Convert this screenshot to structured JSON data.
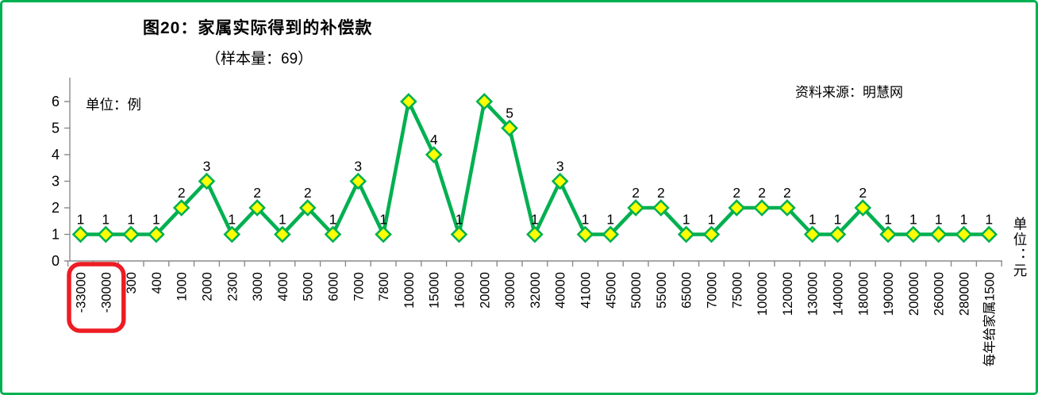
{
  "frame": {
    "border_color": "#00B050",
    "background": "#ffffff"
  },
  "header": {
    "title": "图20：家属实际得到的补偿款",
    "subtitle": "（样本量：69）",
    "source": "资料来源：明慧网"
  },
  "chart_data": {
    "type": "line",
    "title": "图20：家属实际得到的补偿款",
    "subtitle": "（样本量：69）",
    "source": "资料来源：明慧网",
    "ylabel": "单位：例",
    "xlabel": "单位：元",
    "ylim": [
      0,
      6
    ],
    "yticks": [
      0,
      1,
      2,
      3,
      4,
      5,
      6
    ],
    "grid": false,
    "legend": null,
    "categories": [
      "-33000",
      "-30000",
      "300",
      "400",
      "1000",
      "2000",
      "2300",
      "3000",
      "4000",
      "5000",
      "6000",
      "7000",
      "7800",
      "10000",
      "15000",
      "16000",
      "20000",
      "30000",
      "32000",
      "40000",
      "41000",
      "45000",
      "50000",
      "55000",
      "65000",
      "70000",
      "75000",
      "100000",
      "120000",
      "130000",
      "140000",
      "180000",
      "190000",
      "200000",
      "260000",
      "280000",
      "每年给家属1500"
    ],
    "values": [
      1,
      1,
      1,
      1,
      2,
      3,
      1,
      2,
      1,
      2,
      1,
      3,
      1,
      6,
      4,
      1,
      6,
      5,
      1,
      3,
      1,
      1,
      2,
      2,
      1,
      1,
      2,
      2,
      2,
      1,
      1,
      2,
      1,
      1,
      1,
      1,
      1
    ],
    "data_labels": [
      "1",
      "1",
      "1",
      "1",
      "2",
      "3",
      "1",
      "2",
      "1",
      "2",
      "1",
      "3",
      "1",
      "",
      "4",
      "1",
      "",
      "5",
      "1",
      "3",
      "1",
      "1",
      "2",
      "2",
      "1",
      "1",
      "2",
      "2",
      "2",
      "1",
      "1",
      "2",
      "1",
      "1",
      "1",
      "1",
      "1"
    ],
    "line_color": "#00B050",
    "marker": {
      "shape": "diamond",
      "fill": "#FFFF00",
      "stroke": "#00B050"
    },
    "axis_color": "#8a8a8a",
    "label_color": "#000000"
  },
  "annotation": {
    "type": "highlight-box",
    "color": "#ED1C24",
    "around": [
      "-33000",
      "-30000"
    ]
  }
}
